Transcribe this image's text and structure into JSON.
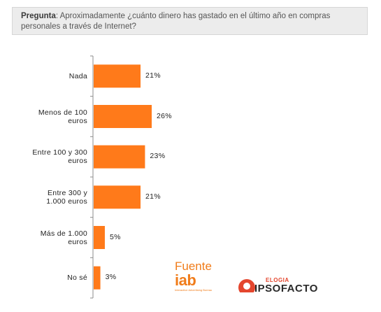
{
  "question": {
    "label": "Pregunta",
    "text": ": Aproximadamente ¿cuánto dinero has gastado en el último año en compras personales a través de Internet?"
  },
  "chart_data": {
    "type": "bar",
    "orientation": "horizontal",
    "categories": [
      "Nada",
      "Menos de 100 euros",
      "Entre 100 y 300 euros",
      "Entre 300 y 1.000 euros",
      "Más de 1.000 euros",
      "No sé"
    ],
    "category_lines": [
      [
        "Nada"
      ],
      [
        "Menos de 100",
        "euros"
      ],
      [
        "Entre 100 y 300",
        "euros"
      ],
      [
        "Entre 300 y",
        "1.000 euros"
      ],
      [
        "Más de 1.000",
        "euros"
      ],
      [
        "No sé"
      ]
    ],
    "values": [
      21,
      26,
      23,
      21,
      5,
      3
    ],
    "value_labels": [
      "21%",
      "26%",
      "23%",
      "21%",
      "5%",
      "3%"
    ],
    "unit": "%",
    "xlim": [
      0,
      30
    ],
    "grid": false,
    "bar_color": "#ff7a1a"
  },
  "source": {
    "fuente_label": "Fuente",
    "iab_logo": "iab",
    "iab_tagline": "Interactive Advertising Bureau",
    "ipso_small": "ELOGIA",
    "ipso_name": "IPSOFACTO"
  },
  "colors": {
    "brand_orange": "#f07c1a",
    "ipso_red": "#e4462e"
  }
}
